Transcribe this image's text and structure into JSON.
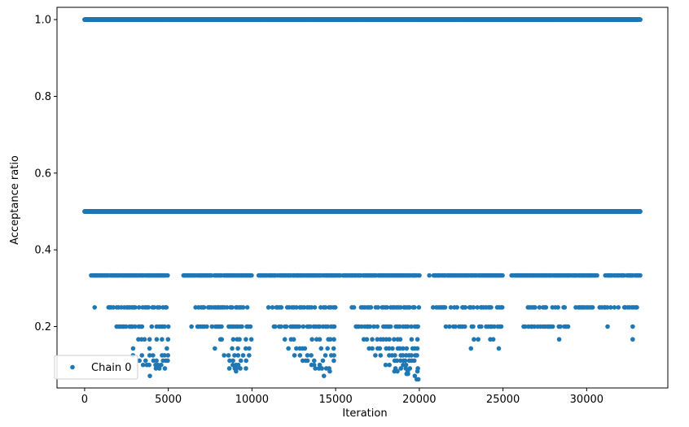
{
  "chart_data": {
    "type": "scatter",
    "title": "",
    "xlabel": "Iteration",
    "ylabel": "Acceptance ratio",
    "xlim": [
      -1650,
      34850
    ],
    "ylim": [
      0.04,
      1.032
    ],
    "xticks": [
      0,
      5000,
      10000,
      15000,
      20000,
      25000,
      30000
    ],
    "xtick_labels": [
      "0",
      "5000",
      "10000",
      "15000",
      "20000",
      "25000",
      "30000"
    ],
    "yticks": [
      0.2,
      0.4,
      0.6,
      0.8,
      1.0
    ],
    "ytick_labels": [
      "0.2",
      "0.4",
      "0.6",
      "0.8",
      "1.0"
    ],
    "grid": false,
    "legend": {
      "position": "lower-left",
      "entries": [
        "Chain 0"
      ]
    },
    "series": [
      {
        "name": "Chain 0",
        "color": "#1f77b4",
        "x_range": [
          0,
          33200
        ],
        "levels": [
          {
            "y": 1.0,
            "segments": [
              [
                0,
                33200
              ]
            ],
            "density": "continuous"
          },
          {
            "y": 0.5,
            "segments": [
              [
                0,
                33200
              ]
            ],
            "density": "continuous"
          },
          {
            "y": 0.3333,
            "segments": [
              [
                400,
                5000
              ],
              [
                5900,
                10000
              ],
              [
                10400,
                20000
              ],
              [
                20600,
                25000
              ],
              [
                25500,
                30600
              ],
              [
                31100,
                33200
              ]
            ],
            "density": "dense"
          },
          {
            "y": 0.25,
            "segments": [
              [
                600,
                600
              ],
              [
                1400,
                5000
              ],
              [
                6500,
                10000
              ],
              [
                11000,
                15000
              ],
              [
                16000,
                20000
              ],
              [
                20800,
                25000
              ],
              [
                26500,
                30400
              ],
              [
                30800,
                33000
              ]
            ],
            "density": "medium"
          },
          {
            "y": 0.2,
            "segments": [
              [
                1900,
                5000
              ],
              [
                6400,
                10000
              ],
              [
                11300,
                15000
              ],
              [
                16200,
                20000
              ],
              [
                21600,
                25000
              ],
              [
                26000,
                28900
              ],
              [
                31200,
                31300
              ],
              [
                32700,
                32800
              ]
            ],
            "density": "medium"
          },
          {
            "y": 0.1667,
            "segments": [
              [
                2900,
                5000
              ],
              [
                7900,
                10000
              ],
              [
                11500,
                15000
              ],
              [
                16500,
                20000
              ],
              [
                22200,
                24700
              ],
              [
                28000,
                28800
              ],
              [
                32700,
                32800
              ]
            ],
            "density": "sparse"
          },
          {
            "y": 0.1429,
            "segments": [
              [
                2900,
                5000
              ],
              [
                7800,
                10000
              ],
              [
                11800,
                15000
              ],
              [
                17000,
                20000
              ],
              [
                22600,
                23200
              ],
              [
                24700,
                24800
              ]
            ],
            "density": "sparse"
          },
          {
            "y": 0.125,
            "segments": [
              [
                2900,
                5000
              ],
              [
                8300,
                10000
              ],
              [
                12500,
                15000
              ],
              [
                17000,
                20000
              ]
            ],
            "density": "sparse"
          },
          {
            "y": 0.1111,
            "segments": [
              [
                3300,
                5000
              ],
              [
                8500,
                10000
              ],
              [
                13000,
                15000
              ],
              [
                17500,
                20000
              ]
            ],
            "density": "sparse"
          },
          {
            "y": 0.1,
            "segments": [
              [
                3200,
                4900
              ],
              [
                8500,
                9900
              ],
              [
                13200,
                14900
              ],
              [
                17700,
                19900
              ]
            ],
            "density": "sparse"
          },
          {
            "y": 0.0909,
            "segments": [
              [
                4300,
                4900
              ],
              [
                8600,
                9800
              ],
              [
                13800,
                14700
              ],
              [
                18200,
                19900
              ]
            ],
            "density": "sparse"
          },
          {
            "y": 0.0833,
            "segments": [
              [
                9000,
                9100
              ],
              [
                14600,
                14700
              ],
              [
                18500,
                19900
              ]
            ],
            "density": "sparse"
          },
          {
            "y": 0.0769,
            "segments": [
              [
                19200,
                20000
              ]
            ],
            "density": "sparse"
          },
          {
            "y": 0.0714,
            "segments": [
              [
                3900,
                3900
              ],
              [
                14300,
                14300
              ],
              [
                19700,
                19900
              ]
            ],
            "density": "sparse"
          },
          {
            "y": 0.0667,
            "segments": [
              [
                19700,
                20000
              ]
            ],
            "density": "sparse"
          },
          {
            "y": 0.0625,
            "segments": [
              [
                19800,
                20000
              ]
            ],
            "density": "sparse"
          }
        ]
      }
    ]
  }
}
